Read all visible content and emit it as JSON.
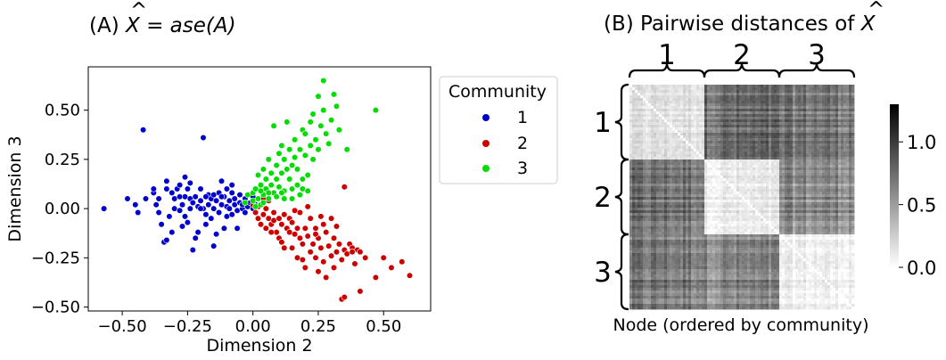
{
  "chart_data": [
    {
      "type": "scatter",
      "title": {
        "prefix": "(A) ",
        "x": "X",
        "hat": "^",
        "rest": " = ",
        "func": "ase",
        "arg": "(A)"
      },
      "xlabel": "Dimension 2",
      "ylabel": "Dimension 3",
      "xlim": [
        -0.63,
        0.68
      ],
      "ylim": [
        -0.52,
        0.72
      ],
      "xticks": [
        -0.5,
        -0.25,
        0.0,
        0.25,
        0.5
      ],
      "xtick_labels": [
        "−0.50",
        "−0.25",
        "0.00",
        "0.25",
        "0.50"
      ],
      "yticks": [
        -0.5,
        -0.25,
        0.0,
        0.25,
        0.5
      ],
      "ytick_labels": [
        "−0.50",
        "−0.25",
        "0.00",
        "0.25",
        "0.50"
      ],
      "grid": false,
      "legend": {
        "title": "Community",
        "placement": "outside-right",
        "entries": [
          "1",
          "2",
          "3"
        ]
      },
      "series": [
        {
          "name": "1",
          "color": "#0000cc",
          "points": [
            [
              -0.57,
              0.0
            ],
            [
              -0.48,
              0.05
            ],
            [
              -0.45,
              0.02
            ],
            [
              -0.44,
              -0.02
            ],
            [
              -0.41,
              0.05
            ],
            [
              -0.42,
              0.4
            ],
            [
              -0.38,
              0.08
            ],
            [
              -0.38,
              0.1
            ],
            [
              -0.37,
              0.02
            ],
            [
              -0.36,
              0.05
            ],
            [
              -0.35,
              -0.08
            ],
            [
              -0.34,
              -0.17
            ],
            [
              -0.33,
              0.14
            ],
            [
              -0.33,
              0.1
            ],
            [
              -0.32,
              -0.04
            ],
            [
              -0.31,
              0.08
            ],
            [
              -0.3,
              0.05
            ],
            [
              -0.3,
              0.0
            ],
            [
              -0.29,
              0.1
            ],
            [
              -0.28,
              -0.01
            ],
            [
              -0.28,
              0.12
            ],
            [
              -0.27,
              0.02
            ],
            [
              -0.26,
              0.06
            ],
            [
              -0.26,
              -0.04
            ],
            [
              -0.25,
              0.1
            ],
            [
              -0.25,
              -0.07
            ],
            [
              -0.24,
              0.05
            ],
            [
              -0.24,
              0.0
            ],
            [
              -0.23,
              -0.21
            ],
            [
              -0.23,
              0.03
            ],
            [
              -0.22,
              0.06
            ],
            [
              -0.21,
              0.01
            ],
            [
              -0.21,
              -0.12
            ],
            [
              -0.2,
              0.04
            ],
            [
              -0.2,
              0.1
            ],
            [
              -0.19,
              0.36
            ],
            [
              -0.19,
              0.0
            ],
            [
              -0.18,
              -0.03
            ],
            [
              -0.17,
              0.07
            ],
            [
              -0.17,
              0.02
            ],
            [
              -0.16,
              -0.05
            ],
            [
              -0.16,
              0.05
            ],
            [
              -0.15,
              -0.19
            ],
            [
              -0.15,
              0.0
            ],
            [
              -0.14,
              0.04
            ],
            [
              -0.13,
              0.08
            ],
            [
              -0.13,
              -0.02
            ],
            [
              -0.12,
              0.14
            ],
            [
              -0.12,
              0.02
            ],
            [
              -0.11,
              -0.1
            ],
            [
              -0.11,
              0.06
            ],
            [
              -0.1,
              0.01
            ],
            [
              -0.1,
              -0.04
            ],
            [
              -0.09,
              0.04
            ],
            [
              -0.09,
              0.0
            ],
            [
              -0.08,
              0.08
            ],
            [
              -0.08,
              -0.03
            ],
            [
              -0.07,
              0.02
            ],
            [
              -0.07,
              0.05
            ],
            [
              -0.06,
              -0.01
            ],
            [
              -0.05,
              0.03
            ],
            [
              -0.05,
              0.07
            ],
            [
              -0.04,
              0.0
            ],
            [
              -0.04,
              0.02
            ],
            [
              -0.03,
              -0.02
            ],
            [
              -0.03,
              0.05
            ],
            [
              -0.02,
              0.01
            ],
            [
              -0.01,
              0.03
            ],
            [
              0.0,
              0.0
            ],
            [
              0.01,
              0.02
            ],
            [
              -0.33,
              -0.16
            ],
            [
              -0.31,
              -0.12
            ],
            [
              -0.27,
              -0.09
            ],
            [
              -0.18,
              -0.08
            ],
            [
              -0.22,
              -0.15
            ],
            [
              -0.28,
              0.06
            ],
            [
              -0.14,
              -0.13
            ],
            [
              -0.06,
              -0.1
            ],
            [
              -0.1,
              0.1
            ],
            [
              -0.24,
              0.13
            ],
            [
              -0.15,
              0.07
            ],
            [
              -0.2,
              0.0
            ],
            [
              -0.36,
              -0.02
            ],
            [
              -0.26,
              0.16
            ],
            [
              -0.18,
              0.06
            ],
            [
              -0.12,
              0.06
            ],
            [
              -0.08,
              0.12
            ],
            [
              0.0,
              0.06
            ]
          ]
        },
        {
          "name": "2",
          "color": "#cc0000",
          "points": [
            [
              0.0,
              0.02
            ],
            [
              0.01,
              -0.02
            ],
            [
              0.02,
              0.01
            ],
            [
              0.02,
              -0.05
            ],
            [
              0.03,
              -0.08
            ],
            [
              0.04,
              -0.03
            ],
            [
              0.05,
              0.0
            ],
            [
              0.05,
              -0.1
            ],
            [
              0.06,
              -0.05
            ],
            [
              0.06,
              0.04
            ],
            [
              0.07,
              -0.08
            ],
            [
              0.08,
              -0.02
            ],
            [
              0.08,
              -0.06
            ],
            [
              0.09,
              -0.12
            ],
            [
              0.1,
              -0.05
            ],
            [
              0.1,
              -0.15
            ],
            [
              0.11,
              -0.08
            ],
            [
              0.12,
              -0.2
            ],
            [
              0.12,
              -0.03
            ],
            [
              0.13,
              -0.1
            ],
            [
              0.14,
              -0.12
            ],
            [
              0.14,
              -0.05
            ],
            [
              0.15,
              -0.2
            ],
            [
              0.15,
              -0.07
            ],
            [
              0.16,
              -0.13
            ],
            [
              0.17,
              -0.25
            ],
            [
              0.17,
              -0.1
            ],
            [
              0.18,
              -0.15
            ],
            [
              0.18,
              -0.02
            ],
            [
              0.19,
              -0.18
            ],
            [
              0.2,
              -0.1
            ],
            [
              0.2,
              -0.3
            ],
            [
              0.21,
              -0.14
            ],
            [
              0.22,
              -0.22
            ],
            [
              0.22,
              -0.05
            ],
            [
              0.23,
              -0.18
            ],
            [
              0.24,
              -0.1
            ],
            [
              0.24,
              -0.25
            ],
            [
              0.25,
              -0.15
            ],
            [
              0.25,
              -0.32
            ],
            [
              0.26,
              -0.2
            ],
            [
              0.27,
              -0.08
            ],
            [
              0.27,
              -0.27
            ],
            [
              0.28,
              -0.12
            ],
            [
              0.28,
              -0.35
            ],
            [
              0.29,
              -0.19
            ],
            [
              0.3,
              -0.24
            ],
            [
              0.3,
              -0.05
            ],
            [
              0.31,
              -0.15
            ],
            [
              0.31,
              -0.3
            ],
            [
              0.32,
              -0.22
            ],
            [
              0.33,
              -0.18
            ],
            [
              0.34,
              -0.26
            ],
            [
              0.34,
              -0.46
            ],
            [
              0.35,
              -0.45
            ],
            [
              0.35,
              -0.21
            ],
            [
              0.36,
              -0.23
            ],
            [
              0.37,
              -0.18
            ],
            [
              0.38,
              -0.2
            ],
            [
              0.39,
              -0.28
            ],
            [
              0.4,
              -0.21
            ],
            [
              0.41,
              -0.42
            ],
            [
              0.43,
              -0.25
            ],
            [
              0.47,
              -0.35
            ],
            [
              0.5,
              -0.25
            ],
            [
              0.53,
              -0.3
            ],
            [
              0.57,
              -0.27
            ],
            [
              0.6,
              -0.34
            ],
            [
              0.41,
              -0.22
            ],
            [
              0.38,
              -0.22
            ],
            [
              0.24,
              -0.13
            ],
            [
              0.19,
              -0.26
            ],
            [
              0.11,
              -0.17
            ],
            [
              0.07,
              -0.12
            ],
            [
              0.04,
              0.05
            ],
            [
              0.16,
              -0.01
            ],
            [
              0.26,
              -0.04
            ],
            [
              0.32,
              -0.09
            ],
            [
              0.21,
              0.01
            ],
            [
              0.35,
              0.11
            ]
          ]
        },
        {
          "name": "3",
          "color": "#00dd00",
          "points": [
            [
              -0.03,
              0.03
            ],
            [
              -0.02,
              0.07
            ],
            [
              0.0,
              0.08
            ],
            [
              0.0,
              0.04
            ],
            [
              0.01,
              0.1
            ],
            [
              0.02,
              0.05
            ],
            [
              0.02,
              0.17
            ],
            [
              0.03,
              0.02
            ],
            [
              0.03,
              0.12
            ],
            [
              0.04,
              0.07
            ],
            [
              0.04,
              0.2
            ],
            [
              0.05,
              0.1
            ],
            [
              0.05,
              0.15
            ],
            [
              0.06,
              0.05
            ],
            [
              0.06,
              0.25
            ],
            [
              0.07,
              0.18
            ],
            [
              0.07,
              0.12
            ],
            [
              0.08,
              0.42
            ],
            [
              0.08,
              0.08
            ],
            [
              0.09,
              0.22
            ],
            [
              0.09,
              0.15
            ],
            [
              0.1,
              0.28
            ],
            [
              0.1,
              0.11
            ],
            [
              0.11,
              0.18
            ],
            [
              0.11,
              0.32
            ],
            [
              0.12,
              0.09
            ],
            [
              0.12,
              0.25
            ],
            [
              0.13,
              0.2
            ],
            [
              0.13,
              0.44
            ],
            [
              0.14,
              0.15
            ],
            [
              0.14,
              0.3
            ],
            [
              0.15,
              0.22
            ],
            [
              0.15,
              0.1
            ],
            [
              0.16,
              0.35
            ],
            [
              0.16,
              0.26
            ],
            [
              0.17,
              0.12
            ],
            [
              0.17,
              0.2
            ],
            [
              0.18,
              0.3
            ],
            [
              0.19,
              0.4
            ],
            [
              0.19,
              0.15
            ],
            [
              0.2,
              0.27
            ],
            [
              0.2,
              0.38
            ],
            [
              0.21,
              0.17
            ],
            [
              0.22,
              0.32
            ],
            [
              0.22,
              0.44
            ],
            [
              0.23,
              0.25
            ],
            [
              0.23,
              0.48
            ],
            [
              0.24,
              0.35
            ],
            [
              0.25,
              0.57
            ],
            [
              0.25,
              0.3
            ],
            [
              0.26,
              0.42
            ],
            [
              0.27,
              0.65
            ],
            [
              0.27,
              0.5
            ],
            [
              0.28,
              0.38
            ],
            [
              0.29,
              0.33
            ],
            [
              0.3,
              0.45
            ],
            [
              0.31,
              0.58
            ],
            [
              0.32,
              0.52
            ],
            [
              0.33,
              0.4
            ],
            [
              0.36,
              0.3
            ],
            [
              0.47,
              0.5
            ],
            [
              0.12,
              0.05
            ],
            [
              0.15,
              0.05
            ],
            [
              0.18,
              0.07
            ],
            [
              0.06,
              0.08
            ],
            [
              0.09,
              0.06
            ],
            [
              0.03,
              0.09
            ],
            [
              0.19,
              0.1
            ],
            [
              0.04,
              0.03
            ],
            [
              0.01,
              0.01
            ],
            [
              0.11,
              0.08
            ],
            [
              0.21,
              0.09
            ]
          ]
        }
      ]
    },
    {
      "type": "heatmap",
      "title": {
        "prefix": "(B) Pairwise distances of ",
        "x": "X",
        "hat": "^"
      },
      "xlabel": "Node (ordered by community)",
      "groups": [
        "1",
        "2",
        "3"
      ],
      "colormap": "Greys",
      "colorbar": {
        "min": 0.0,
        "max": 1.3,
        "ticks": [
          0.0,
          0.5,
          1.0
        ],
        "tick_labels": [
          "0.0",
          "0.5",
          "1.0"
        ]
      },
      "block_means": [
        [
          0.15,
          0.72,
          0.68
        ],
        [
          0.72,
          0.1,
          0.6
        ],
        [
          0.68,
          0.6,
          0.08
        ]
      ]
    }
  ]
}
